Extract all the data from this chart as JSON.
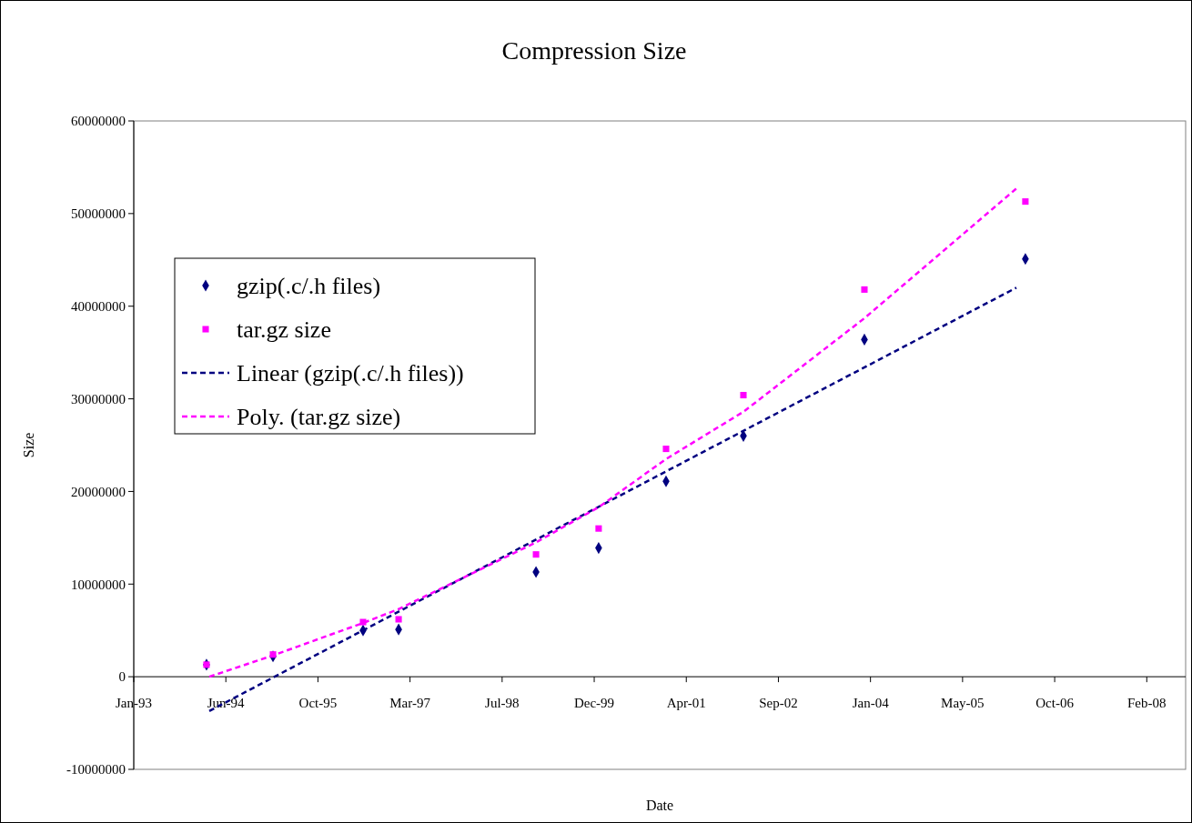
{
  "chart_data": {
    "type": "scatter",
    "title": "Compression Size",
    "xlabel": "Date",
    "ylabel": "Size",
    "x": [
      "1994-03-02",
      "1995-02-26",
      "1996-06-29",
      "1997-01-08",
      "1999-01-24",
      "1999-12-30",
      "2000-12-30",
      "2002-02-23",
      "2003-12-12",
      "2006-05-04"
    ],
    "series": [
      {
        "name": "gzip(.c/.h files)",
        "color": "#000080",
        "marker": "diamond",
        "values": [
          1300000,
          2200000,
          5000000,
          5100000,
          11300000,
          13900000,
          21100000,
          26000000,
          36400000,
          45100000
        ]
      },
      {
        "name": "tar.gz size",
        "color": "#ff00ff",
        "marker": "square",
        "values": [
          1300000,
          2400000,
          5900000,
          6200000,
          13200000,
          16000000,
          24600000,
          30400000,
          41800000,
          51300000
        ]
      },
      {
        "name": "Linear (gzip(.c/.h files))",
        "type": "line",
        "color": "#000080",
        "line_style": "dashed",
        "marker": "none",
        "x": [
          "1994-03-17",
          "2006-03-16"
        ],
        "values": [
          -3700000,
          42000000
        ]
      },
      {
        "name": "Poly. (tar.gz size)",
        "type": "line",
        "color": "#ff00ff",
        "line_style": "dashed",
        "marker": "none",
        "x": [
          "1994-03-17",
          "1995-02-26",
          "1996-06-29",
          "1997-01-08",
          "1999-01-24",
          "1999-12-30",
          "2000-12-30",
          "2002-02-23",
          "2003-12-12",
          "2006-03-16"
        ],
        "values": [
          0,
          2300000,
          5800000,
          7300000,
          14500000,
          18300000,
          23500000,
          28600000,
          38700000,
          52700000
        ]
      }
    ],
    "xlim": [
      "1993-01-31",
      "2008-09-20"
    ],
    "xticks": [
      {
        "value": "1993-01-31",
        "label": "Jan-93"
      },
      {
        "value": "1994-06-15",
        "label": "Jun-94"
      },
      {
        "value": "1995-10-28",
        "label": "Oct-95"
      },
      {
        "value": "1997-03-11",
        "label": "Mar-97"
      },
      {
        "value": "1998-07-24",
        "label": "Jul-98"
      },
      {
        "value": "1999-12-06",
        "label": "Dec-99"
      },
      {
        "value": "2001-04-19",
        "label": "Apr-01"
      },
      {
        "value": "2002-09-01",
        "label": "Sep-02"
      },
      {
        "value": "2004-01-14",
        "label": "Jan-04"
      },
      {
        "value": "2005-05-28",
        "label": "May-05"
      },
      {
        "value": "2006-10-10",
        "label": "Oct-06"
      },
      {
        "value": "2008-02-22",
        "label": "Feb-08"
      }
    ],
    "ylim": [
      -10000000,
      60000000
    ],
    "yticks": [
      -10000000,
      0,
      10000000,
      20000000,
      30000000,
      40000000,
      50000000,
      60000000
    ],
    "grid": false,
    "legend": "top left"
  }
}
